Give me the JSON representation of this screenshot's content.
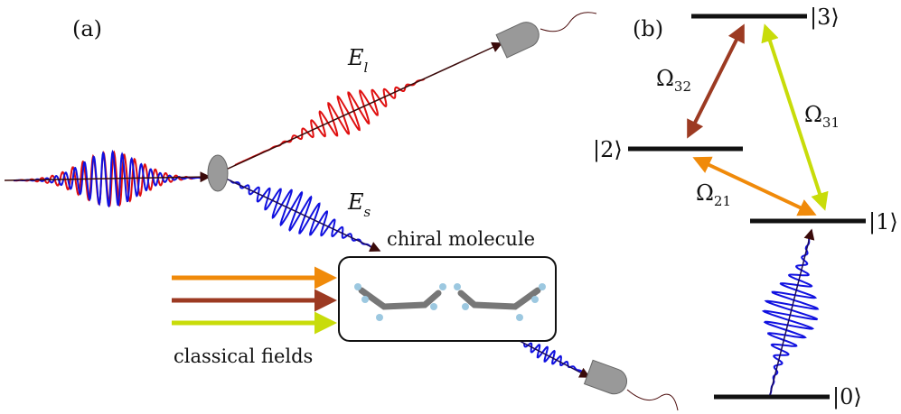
{
  "panel_a": {
    "label": "(a)",
    "E_l": {
      "main": "E",
      "sub": "l"
    },
    "E_s": {
      "main": "E",
      "sub": "s"
    },
    "molecule_label": "chiral molecule",
    "fields_label": "classical fields"
  },
  "panel_b": {
    "label": "(b)",
    "levels": [
      "|3⟩",
      "|2⟩",
      "|1⟩",
      "|0⟩"
    ],
    "couplings": [
      {
        "main": "Ω",
        "sub": "32"
      },
      {
        "main": "Ω",
        "sub": "31"
      },
      {
        "main": "Ω",
        "sub": "21"
      }
    ]
  }
}
